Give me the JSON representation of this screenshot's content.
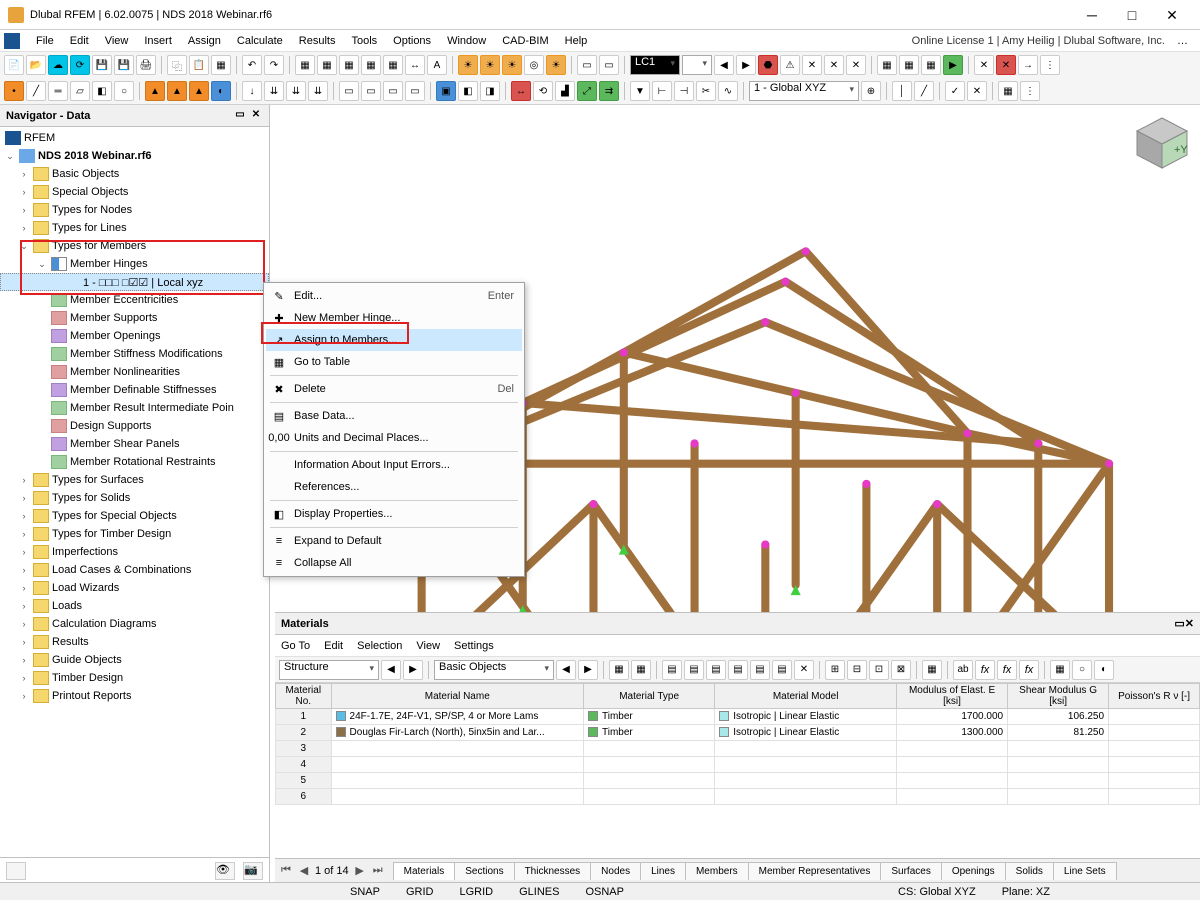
{
  "window": {
    "title": "Dlubal RFEM | 6.02.0075 | NDS 2018 Webinar.rf6",
    "license": "Online License 1 | Amy Heilig | Dlubal Software, Inc."
  },
  "menu": [
    "File",
    "Edit",
    "View",
    "Insert",
    "Assign",
    "Calculate",
    "Results",
    "Tools",
    "Options",
    "Window",
    "CAD-BIM",
    "Help"
  ],
  "toolbar": {
    "lc_combo": "LC1",
    "cs_combo": "1 - Global XYZ"
  },
  "navigator": {
    "title": "Navigator - Data",
    "root": "RFEM",
    "file": "NDS 2018 Webinar.rf6",
    "selected_hinge": "1 - □□□  □☑☑ | Local xyz",
    "top_nodes": [
      "Basic Objects",
      "Special Objects",
      "Types for Nodes",
      "Types for Lines"
    ],
    "types_for_members": "Types for Members",
    "member_hinges": "Member Hinges",
    "member_children": [
      "Member Eccentricities",
      "Member Supports",
      "Member Openings",
      "Member Stiffness Modifications",
      "Member Nonlinearities",
      "Member Definable Stiffnesses",
      "Member Result Intermediate Poin",
      "Design Supports",
      "Member Shear Panels",
      "Member Rotational Restraints"
    ],
    "bottom_nodes": [
      "Types for Surfaces",
      "Types for Solids",
      "Types for Special Objects",
      "Types for Timber Design",
      "Imperfections",
      "Load Cases & Combinations",
      "Load Wizards",
      "Loads",
      "Calculation Diagrams",
      "Results",
      "Guide Objects",
      "Timber Design",
      "Printout Reports"
    ]
  },
  "context_menu": {
    "items": [
      {
        "label": "Edit...",
        "shortcut": "Enter",
        "icon": "✎"
      },
      {
        "label": "New Member Hinge...",
        "icon": "✚"
      },
      {
        "label": "Assign to Members...",
        "icon": "↗",
        "highlighted": true
      },
      {
        "label": "Go to Table",
        "icon": "▦"
      },
      {
        "sep": true
      },
      {
        "label": "Delete",
        "shortcut": "Del",
        "icon": "✖"
      },
      {
        "sep": true
      },
      {
        "label": "Base Data...",
        "icon": "▤"
      },
      {
        "label": "Units and Decimal Places...",
        "icon": "0,00"
      },
      {
        "sep": true
      },
      {
        "label": "Information About Input Errors..."
      },
      {
        "label": "References..."
      },
      {
        "sep": true
      },
      {
        "label": "Display Properties...",
        "icon": "◧"
      },
      {
        "sep": true
      },
      {
        "label": "Expand to Default",
        "icon": "≡"
      },
      {
        "label": "Collapse All",
        "icon": "≡"
      }
    ]
  },
  "materials": {
    "title": "Materials",
    "menu": [
      "Go To",
      "Edit",
      "Selection",
      "View",
      "Settings"
    ],
    "structure_combo": "Structure",
    "basic_combo": "Basic Objects",
    "columns": [
      "Material\nNo.",
      "Material Name",
      "Material\nType",
      "Material Model",
      "Modulus of Elast.\nE [ksi]",
      "Shear Modulus\nG [ksi]",
      "Poisson's R\nν [-]"
    ],
    "rows": [
      {
        "no": "1",
        "name": "24F-1.7E, 24F-V1, SP/SP, 4 or More Lams",
        "name_color": "#5bbce4",
        "type": "Timber",
        "type_color": "#5cb85c",
        "model": "Isotropic | Linear Elastic",
        "model_color": "#a8e8e8",
        "E": "1700.000",
        "G": "106.250"
      },
      {
        "no": "2",
        "name": "Douglas Fir-Larch (North), 5inx5in and Lar...",
        "name_color": "#8b6f47",
        "type": "Timber",
        "type_color": "#5cb85c",
        "model": "Isotropic | Linear Elastic",
        "model_color": "#a8e8e8",
        "E": "1300.000",
        "G": "81.250"
      }
    ],
    "empty_rows": [
      "3",
      "4",
      "5",
      "6"
    ],
    "pager": "1 of 14",
    "tabs": [
      "Materials",
      "Sections",
      "Thicknesses",
      "Nodes",
      "Lines",
      "Members",
      "Member Representatives",
      "Surfaces",
      "Openings",
      "Solids",
      "Line Sets"
    ],
    "active_tab": 0
  },
  "status": {
    "snap_items": [
      "SNAP",
      "GRID",
      "LGRID",
      "GLINES",
      "OSNAP"
    ],
    "cs": "CS: Global XYZ",
    "plane": "Plane: XZ"
  },
  "colors": {
    "highlight": "#cce8ff",
    "redbox": "#e02020"
  }
}
